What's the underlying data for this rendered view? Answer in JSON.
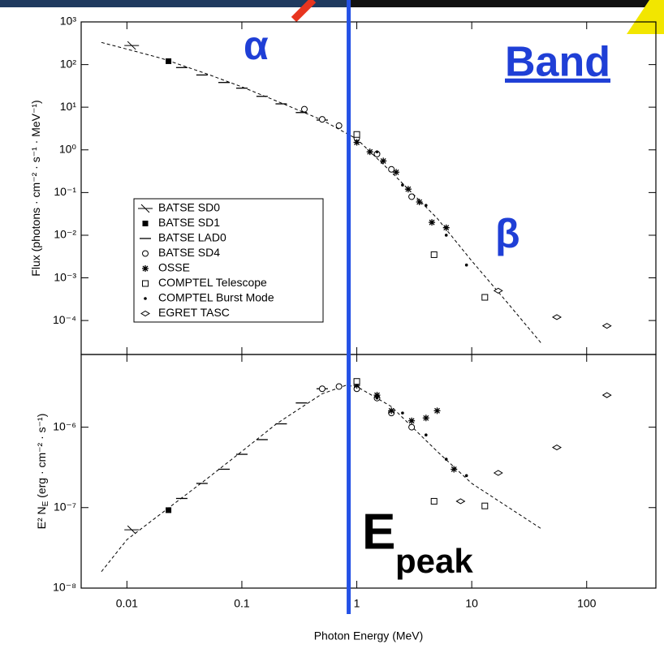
{
  "chart_data": [
    {
      "type": "scatter",
      "ylabel": "Flux  (photons · cm⁻² · s⁻¹ · MeV⁻¹)",
      "xlim": [
        0.004,
        400
      ],
      "ylim": [
        1.6e-05,
        1000
      ],
      "log_x": true,
      "log_y": true,
      "xticks": [
        0.01,
        0.1,
        1,
        10,
        100
      ],
      "xtick_labels": false,
      "yticks": [
        {
          "value": 1000,
          "label": "10³"
        },
        {
          "value": 100,
          "label": "10²"
        },
        {
          "value": 10,
          "label": "10¹"
        },
        {
          "value": 1,
          "label": "10⁰"
        },
        {
          "value": 0.1,
          "label": "10⁻¹"
        },
        {
          "value": 0.01,
          "label": "10⁻²"
        },
        {
          "value": 0.001,
          "label": "10⁻³"
        },
        {
          "value": 0.0001,
          "label": "10⁻⁴"
        }
      ],
      "legend": "left",
      "model": {
        "x": [
          0.006,
          0.01,
          0.02,
          0.05,
          0.1,
          0.2,
          0.5,
          1,
          2,
          5,
          10,
          20,
          40
        ],
        "values": [
          330,
          230,
          140,
          60,
          30,
          14,
          5,
          1.8,
          0.3,
          0.025,
          0.0025,
          0.00028,
          3e-05
        ]
      },
      "series": [
        {
          "name": "BATSE SD0",
          "marker": "backslash",
          "x": [
            0.011
          ],
          "values": [
            280
          ]
        },
        {
          "name": "BATSE SD1",
          "marker": "filled-square",
          "x": [
            0.023
          ],
          "values": [
            120
          ]
        },
        {
          "name": "BATSE LAD0",
          "marker": "dash",
          "x": [
            0.03,
            0.045,
            0.07,
            0.1,
            0.15,
            0.22,
            0.33,
            0.5
          ],
          "values": [
            85,
            57,
            38,
            28,
            18,
            12,
            7.5,
            5
          ]
        },
        {
          "name": "BATSE SD4",
          "marker": "circle",
          "x": [
            0.35,
            0.5,
            0.7,
            1,
            1.5,
            2,
            3
          ],
          "values": [
            9,
            5.2,
            3.7,
            1.9,
            0.8,
            0.35,
            0.08
          ]
        },
        {
          "name": "OSSE",
          "marker": "star",
          "x": [
            1,
            1.3,
            1.7,
            2.2,
            2.8,
            3.5,
            4.5,
            6
          ],
          "values": [
            1.5,
            0.9,
            0.55,
            0.3,
            0.12,
            0.06,
            0.02,
            0.015
          ]
        },
        {
          "name": "COMPTEL Telescope",
          "marker": "square",
          "x": [
            1,
            4.7,
            13
          ],
          "values": [
            2.3,
            0.0035,
            0.00035
          ]
        },
        {
          "name": "COMPTEL Burst Mode",
          "marker": "dot",
          "x": [
            1.5,
            2.5,
            4,
            6,
            9
          ],
          "values": [
            0.9,
            0.15,
            0.05,
            0.01,
            0.002
          ]
        },
        {
          "name": "EGRET TASC",
          "marker": "diamond",
          "x": [
            17,
            55,
            150
          ],
          "values": [
            0.0005,
            0.00012,
            7.5e-05
          ]
        }
      ]
    },
    {
      "type": "scatter",
      "ylabel": "E² N",
      "ylabel_sub": "E",
      "ylabel_rest": " (erg · cm⁻² · s⁻¹)",
      "xlabel": "Photon Energy (MeV)",
      "xlim": [
        0.004,
        400
      ],
      "ylim": [
        1e-08,
        8e-06
      ],
      "log_x": true,
      "log_y": true,
      "xticks": [
        0.01,
        0.1,
        1,
        10,
        100
      ],
      "xtick_labels": true,
      "yticks": [
        {
          "value": 1e-06,
          "label": "10⁻⁶"
        },
        {
          "value": 1e-07,
          "label": "10⁻⁷"
        },
        {
          "value": 1e-08,
          "label": "10⁻⁸"
        }
      ],
      "model": {
        "x": [
          0.006,
          0.01,
          0.02,
          0.05,
          0.1,
          0.2,
          0.5,
          0.8,
          1,
          2,
          5,
          10,
          40
        ],
        "values": [
          1.6e-08,
          4e-08,
          8.5e-08,
          2.3e-07,
          5e-07,
          1.1e-06,
          2.6e-06,
          3.3e-06,
          3.2e-06,
          1.8e-06,
          5e-07,
          2e-07,
          5.5e-08
        ]
      },
      "series": [
        {
          "marker": "backslash",
          "x": [
            0.011
          ],
          "values": [
            5.3e-08
          ]
        },
        {
          "marker": "filled-square",
          "x": [
            0.023
          ],
          "values": [
            9.3e-08
          ]
        },
        {
          "marker": "dash",
          "x": [
            0.03,
            0.045,
            0.07,
            0.1,
            0.15,
            0.22,
            0.33,
            0.5
          ],
          "values": [
            1.3e-07,
            2e-07,
            3e-07,
            4.6e-07,
            7e-07,
            1.1e-06,
            2e-06,
            3e-06
          ]
        },
        {
          "marker": "circle",
          "x": [
            0.5,
            0.7,
            1,
            1.5,
            2,
            3
          ],
          "values": [
            3e-06,
            3.2e-06,
            3e-06,
            2.3e-06,
            1.5e-06,
            1e-06
          ]
        },
        {
          "marker": "star",
          "x": [
            1,
            1.5,
            2,
            3,
            4,
            5,
            7
          ],
          "values": [
            3.3e-06,
            2.5e-06,
            1.6e-06,
            1.2e-06,
            1.3e-06,
            1.6e-06,
            3e-07
          ]
        },
        {
          "marker": "square",
          "x": [
            1,
            4.7,
            13
          ],
          "values": [
            3.7e-06,
            1.2e-07,
            1.05e-07
          ]
        },
        {
          "marker": "dot",
          "x": [
            1.5,
            2.5,
            4,
            6,
            9
          ],
          "values": [
            2.3e-06,
            1.5e-06,
            8e-07,
            4e-07,
            2.5e-07
          ]
        },
        {
          "marker": "diamond",
          "x": [
            8,
            17,
            55,
            150
          ],
          "values": [
            1.2e-07,
            2.7e-07,
            5.6e-07,
            2.5e-06
          ]
        }
      ]
    }
  ],
  "marker_line": {
    "x": 0.85,
    "color": "#2451e6"
  },
  "annotations": {
    "alpha": "α",
    "band": "Band",
    "beta": "β",
    "epeak_main": "E",
    "epeak_sub": "peak"
  }
}
